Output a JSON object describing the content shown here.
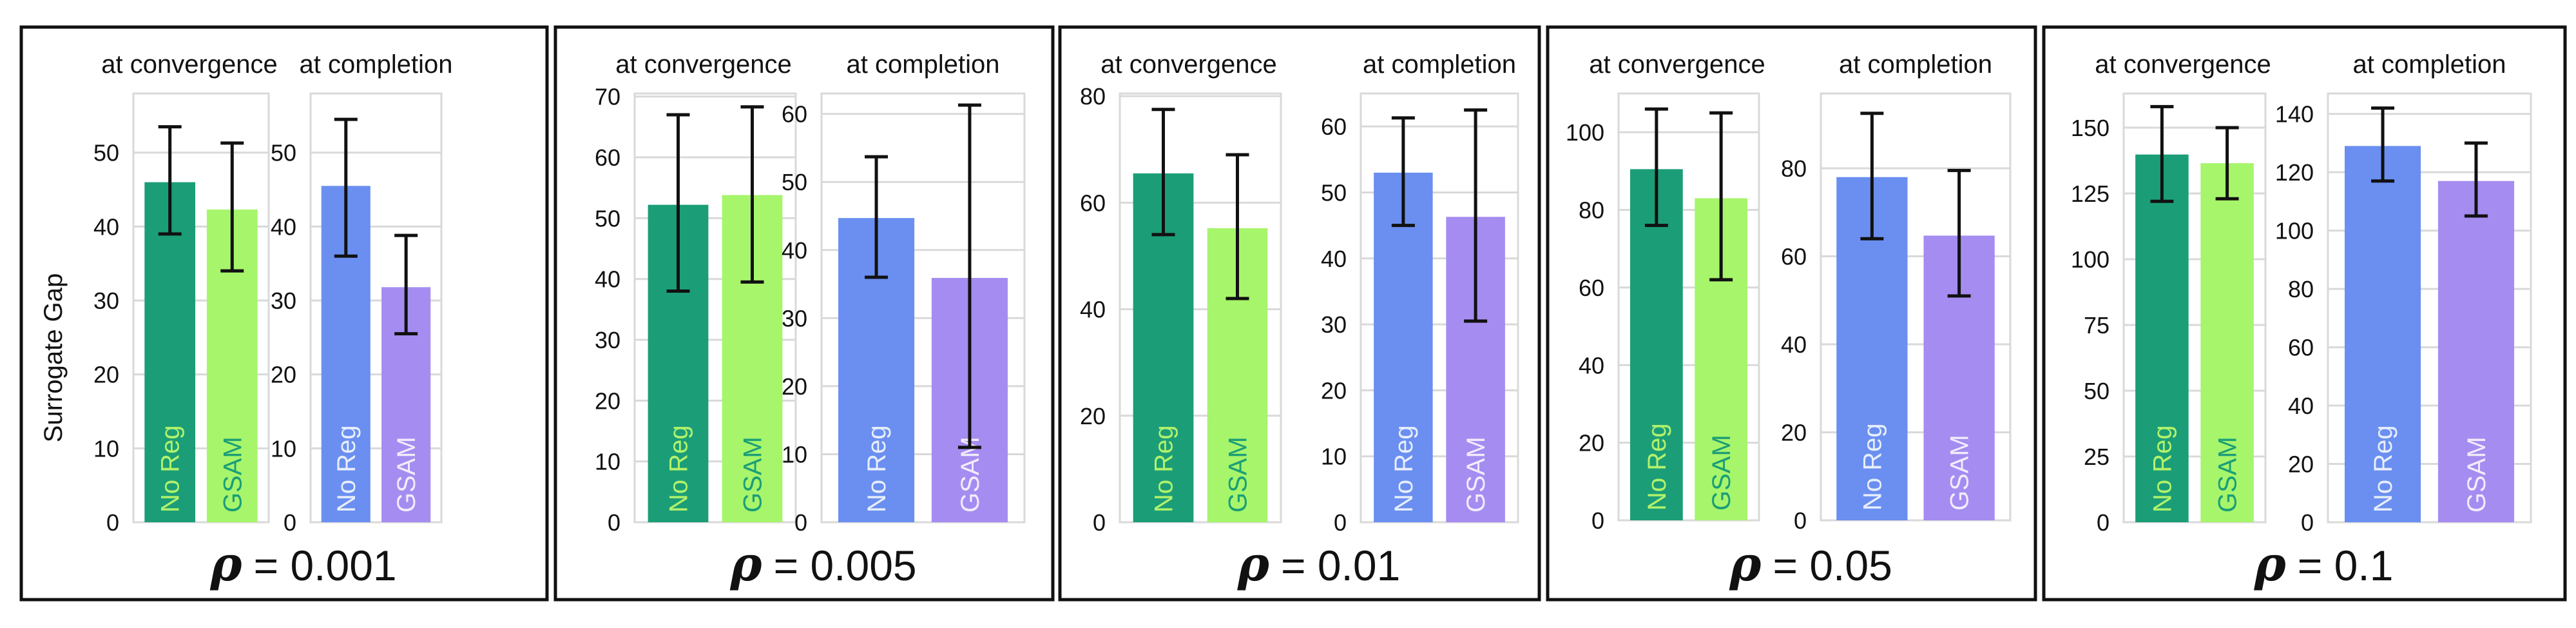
{
  "figure": {
    "ylabel": "Surrogate Gap",
    "rho_symbol": "ρ",
    "colors": {
      "no_reg_convergence": "#1b9e77",
      "gsam_convergence": "#a6f56b",
      "no_reg_completion": "#6a8ff0",
      "gsam_completion": "#a58cf0",
      "frame": "#111111",
      "grid": "#d9d9d9",
      "error_bar": "#111111",
      "label_on_green": "#b2f26b",
      "label_on_light_green": "#1b9e77",
      "label_on_blue": "#e8eefc",
      "label_on_purple": "#f1ecfc"
    }
  },
  "chart_data": [
    {
      "type": "bar",
      "title": "ρ = 0.001",
      "rho_value": "= 0.001",
      "subplots": [
        {
          "title": "at convergence",
          "categories": [
            "No Reg",
            "GSAM"
          ],
          "values": [
            46,
            42.3
          ],
          "errors_low": [
            39,
            34
          ],
          "errors_high": [
            53.5,
            51.3
          ],
          "ylim": [
            0,
            58
          ],
          "yticks": [
            0,
            10,
            20,
            30,
            40,
            50
          ]
        },
        {
          "title": "at completion",
          "categories": [
            "No Reg",
            "GSAM"
          ],
          "values": [
            45.5,
            31.8
          ],
          "errors_low": [
            36,
            25.5
          ],
          "errors_high": [
            54.5,
            38.8
          ],
          "ylim": [
            0,
            58
          ],
          "yticks": [
            0,
            10,
            20,
            30,
            40,
            50
          ]
        }
      ]
    },
    {
      "type": "bar",
      "title": "ρ = 0.005",
      "rho_value": "= 0.005",
      "subplots": [
        {
          "title": "at convergence",
          "categories": [
            "No Reg",
            "GSAM"
          ],
          "values": [
            52.2,
            53.8
          ],
          "errors_low": [
            38,
            39.5
          ],
          "errors_high": [
            67,
            68.3
          ],
          "ylim": [
            0,
            70.5
          ],
          "yticks": [
            0,
            10,
            20,
            30,
            40,
            50,
            60,
            70
          ]
        },
        {
          "title": "at completion",
          "categories": [
            "No Reg",
            "GSAM"
          ],
          "values": [
            44.7,
            35.9
          ],
          "errors_low": [
            36,
            11
          ],
          "errors_high": [
            53.7,
            61.3
          ],
          "ylim": [
            0,
            63
          ],
          "yticks": [
            0,
            10,
            20,
            30,
            40,
            50,
            60
          ]
        }
      ]
    },
    {
      "type": "bar",
      "title": "ρ = 0.01",
      "rho_value": "= 0.01",
      "subplots": [
        {
          "title": "at convergence",
          "categories": [
            "No Reg",
            "GSAM"
          ],
          "values": [
            65.5,
            55.2
          ],
          "errors_low": [
            54,
            42
          ],
          "errors_high": [
            77.5,
            69
          ],
          "ylim": [
            0,
            80.5
          ],
          "yticks": [
            0,
            20,
            40,
            60,
            80
          ]
        },
        {
          "title": "at completion",
          "categories": [
            "No Reg",
            "GSAM"
          ],
          "values": [
            53,
            46.3
          ],
          "errors_low": [
            45,
            30.5
          ],
          "errors_high": [
            61.3,
            62.5
          ],
          "ylim": [
            0,
            65
          ],
          "yticks": [
            0,
            10,
            20,
            30,
            40,
            50,
            60
          ]
        }
      ]
    },
    {
      "type": "bar",
      "title": "ρ = 0.05",
      "rho_value": "= 0.05",
      "subplots": [
        {
          "title": "at convergence",
          "categories": [
            "No Reg",
            "GSAM"
          ],
          "values": [
            90.5,
            83
          ],
          "errors_low": [
            76,
            62
          ],
          "errors_high": [
            106,
            105
          ],
          "ylim": [
            0,
            110
          ],
          "yticks": [
            0,
            20,
            40,
            60,
            80,
            100
          ]
        },
        {
          "title": "at completion",
          "categories": [
            "No Reg",
            "GSAM"
          ],
          "values": [
            78,
            64.7
          ],
          "errors_low": [
            64,
            51
          ],
          "errors_high": [
            92.5,
            79.5
          ],
          "ylim": [
            0,
            97
          ],
          "yticks": [
            0,
            20,
            40,
            60,
            80
          ]
        }
      ]
    },
    {
      "type": "bar",
      "title": "ρ = 0.1",
      "rho_value": "= 0.1",
      "subplots": [
        {
          "title": "at convergence",
          "categories": [
            "No Reg",
            "GSAM"
          ],
          "values": [
            139.8,
            136.5
          ],
          "errors_low": [
            122,
            123
          ],
          "errors_high": [
            158,
            150
          ],
          "ylim": [
            0,
            163
          ],
          "yticks": [
            0,
            25,
            50,
            75,
            100,
            125,
            150
          ]
        },
        {
          "title": "at completion",
          "categories": [
            "No Reg",
            "GSAM"
          ],
          "values": [
            129,
            117
          ],
          "errors_low": [
            117,
            105
          ],
          "errors_high": [
            142,
            130
          ],
          "ylim": [
            0,
            147
          ],
          "yticks": [
            0,
            20,
            40,
            60,
            80,
            100,
            120,
            140
          ]
        }
      ]
    }
  ]
}
